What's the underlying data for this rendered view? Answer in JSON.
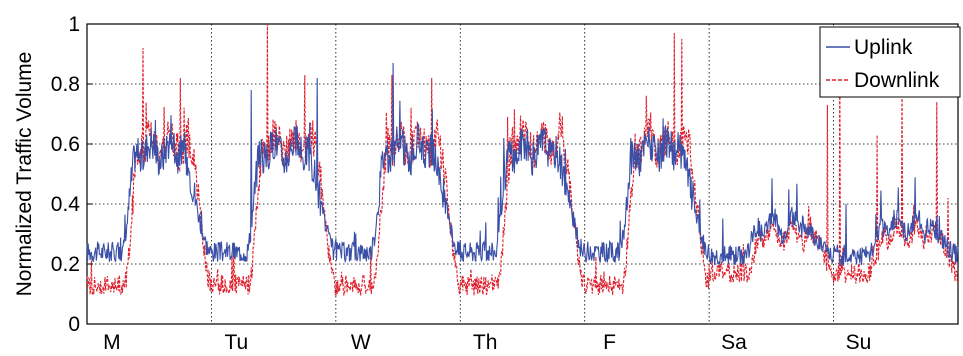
{
  "chart_data": {
    "type": "line",
    "title": "",
    "xlabel": "",
    "ylabel": "Normalized Traffic Volume",
    "ylim": [
      0,
      1
    ],
    "yticks": [
      "0",
      "0.2",
      "0.4",
      "0.6",
      "0.8",
      "1"
    ],
    "xlim": [
      0,
      7
    ],
    "xticks": [
      {
        "label": "M",
        "x": 0.2
      },
      {
        "label": "Tu",
        "x": 1.2
      },
      {
        "label": "W",
        "x": 2.2
      },
      {
        "label": "Th",
        "x": 3.2
      },
      {
        "label": "F",
        "x": 4.2
      },
      {
        "label": "Sa",
        "x": 5.2
      },
      {
        "label": "Su",
        "x": 6.2
      }
    ],
    "grid": true,
    "legend_position": "top-right",
    "series": [
      {
        "name": "Uplink",
        "color": "#3a4fa6",
        "style": "solid",
        "day_profile": {
          "night": 0.24,
          "peak": 0.58,
          "ramp_up_start": 0.28,
          "ramp_up_end": 0.4,
          "ramp_down_start": 0.75,
          "ramp_down_end": 1.02,
          "weekend_night": 0.23,
          "weekend_peak": 0.33
        },
        "spikes": [
          [
            0.55,
            0.68
          ],
          [
            1.32,
            0.78
          ],
          [
            1.85,
            0.82
          ],
          [
            2.46,
            0.87
          ],
          [
            3.35,
            0.62
          ],
          [
            4.37,
            0.62
          ],
          [
            6.1,
            0.4
          ],
          [
            6.55,
            0.34
          ],
          [
            6.85,
            0.36
          ]
        ]
      },
      {
        "name": "Downlink",
        "color": "#e01f2c",
        "style": "dashed",
        "day_profile": {
          "night": 0.13,
          "peak": 0.6,
          "ramp_up_start": 0.3,
          "ramp_up_end": 0.42,
          "ramp_down_start": 0.82,
          "ramp_down_end": 1.05,
          "weekend_night": 0.17,
          "weekend_peak": 0.3
        },
        "spikes": [
          [
            0.45,
            0.92
          ],
          [
            0.75,
            0.82
          ],
          [
            1.45,
            1.0
          ],
          [
            1.75,
            0.83
          ],
          [
            2.45,
            0.83
          ],
          [
            2.77,
            0.82
          ],
          [
            3.38,
            0.69
          ],
          [
            3.7,
            0.62
          ],
          [
            4.72,
            0.97
          ],
          [
            4.78,
            0.95
          ],
          [
            5.95,
            0.73
          ],
          [
            6.05,
            0.91
          ],
          [
            6.55,
            0.82
          ],
          [
            6.35,
            0.63
          ],
          [
            6.83,
            0.74
          ],
          [
            6.92,
            0.42
          ]
        ]
      }
    ]
  }
}
